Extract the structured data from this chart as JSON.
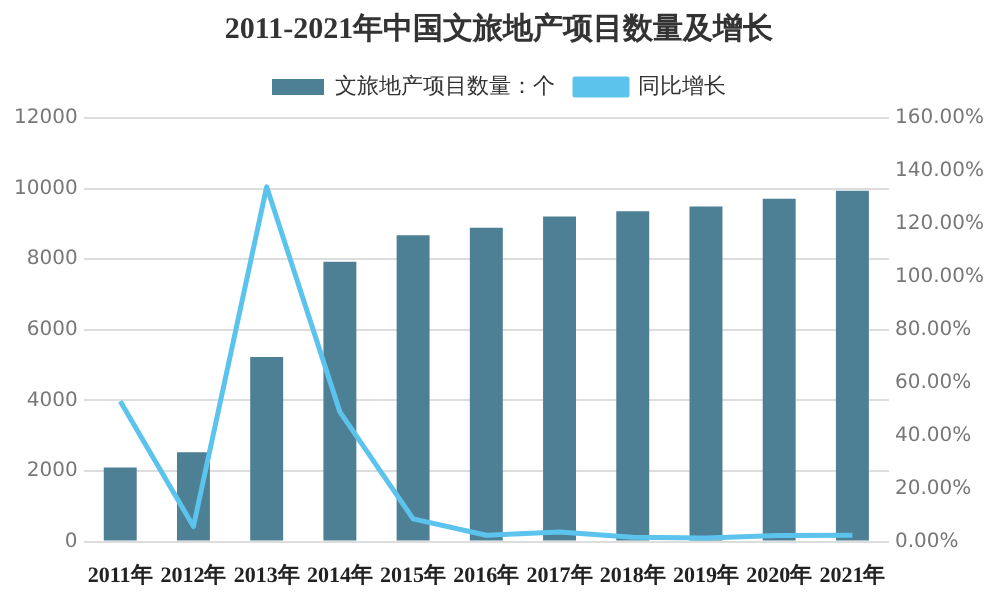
{
  "chart_data": {
    "type": "bar",
    "title": "2011-2021年中国文旅地产项目数量及增长",
    "categories": [
      "2011年",
      "2012年",
      "2013年",
      "2014年",
      "2015年",
      "2016年",
      "2017年",
      "2018年",
      "2019年",
      "2020年",
      "2021年"
    ],
    "series": [
      {
        "name": "文旅地产项目数量：个",
        "color": "#4d7f95",
        "values": [
          2100,
          2530,
          5230,
          7930,
          8680,
          8890,
          9210,
          9360,
          9490,
          9710,
          9940
        ]
      },
      {
        "name": "同比增长",
        "type": "line",
        "axis": "y2",
        "color": "#5cc3ec",
        "values": [
          53,
          5.7,
          134,
          49,
          8.6,
          2.4,
          3.6,
          1.6,
          1.4,
          2.3,
          2.4
        ]
      }
    ],
    "ylim": [
      0,
      12000
    ],
    "yticks": [
      0,
      2000,
      4000,
      6000,
      8000,
      10000,
      12000
    ],
    "y2lim": [
      0,
      160
    ],
    "y2ticks": [
      {
        "value": 0,
        "label": "0.00%"
      },
      {
        "value": 20,
        "label": "20.00%"
      },
      {
        "value": 40,
        "label": "40.00%"
      },
      {
        "value": 60,
        "label": "60.00%"
      },
      {
        "value": 80,
        "label": "80.00%"
      },
      {
        "value": 100,
        "label": "100.00%"
      },
      {
        "value": 120,
        "label": "120.00%"
      },
      {
        "value": 140,
        "label": "140.00%"
      },
      {
        "value": 160,
        "label": "160.00%"
      }
    ],
    "grid": "y",
    "legend": "top",
    "marker": "none"
  }
}
